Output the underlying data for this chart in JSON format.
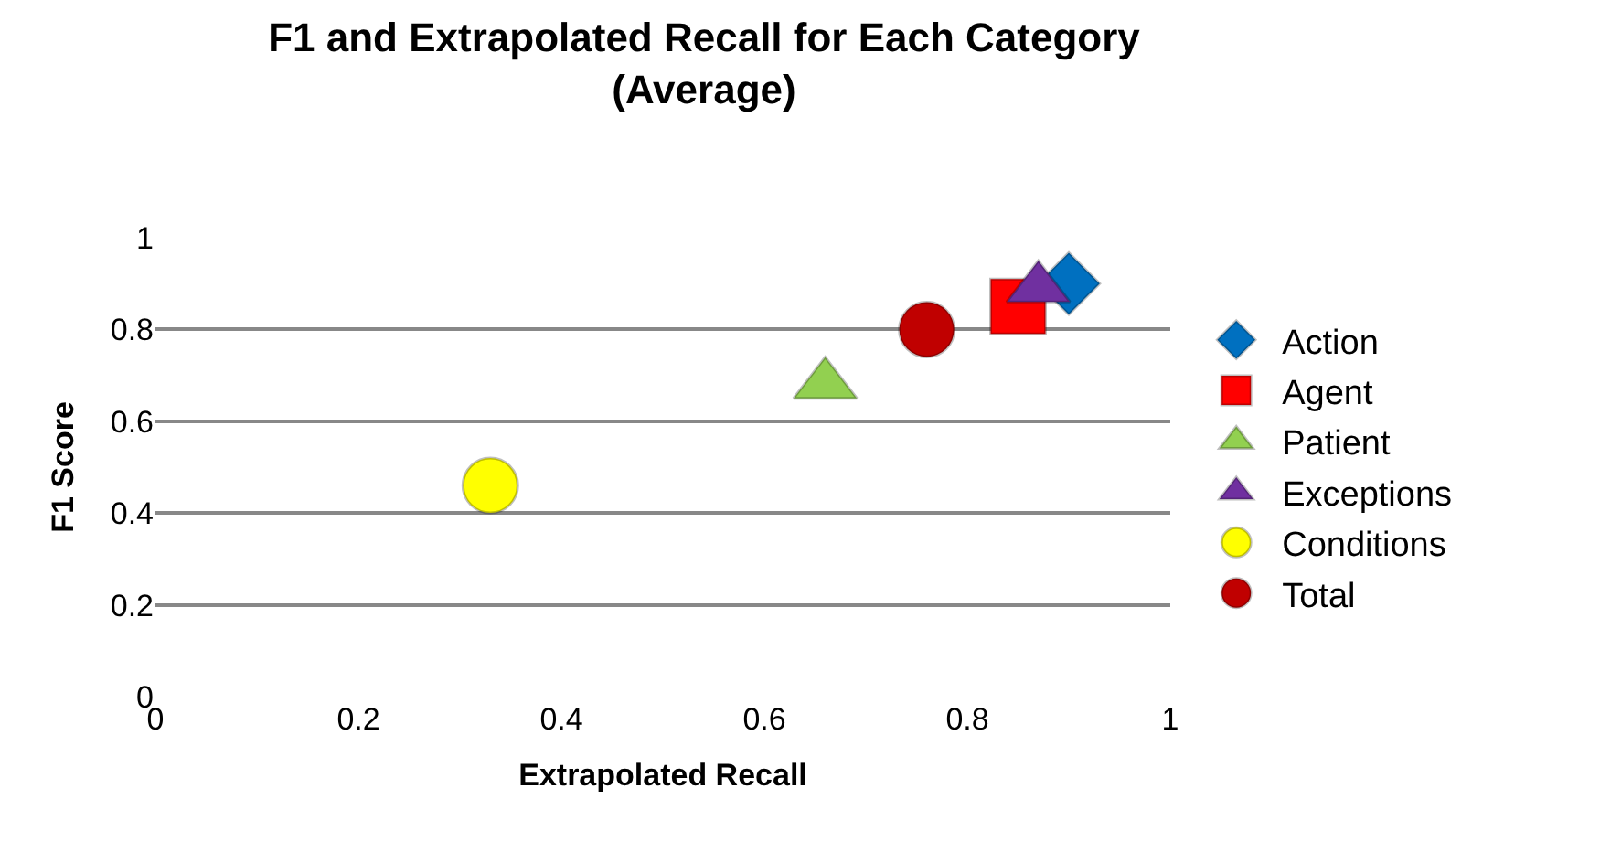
{
  "chart_data": {
    "type": "scatter",
    "title": "F1 and Extrapolated Recall for Each Category\n(Average)",
    "xlabel": "Extrapolated Recall",
    "ylabel": "F1 Score",
    "xlim": [
      0,
      1
    ],
    "xticks": [
      0,
      0.2,
      0.4,
      0.6,
      0.8,
      1
    ],
    "ylim": [
      0,
      1
    ],
    "yticks": [
      0,
      0.2,
      0.4,
      0.6,
      0.8,
      1
    ],
    "grid": "y",
    "legend": "right",
    "series": [
      {
        "name": "Action",
        "color": "#0070c0",
        "marker": "diamond",
        "x": [
          0.9
        ],
        "values": [
          0.9
        ]
      },
      {
        "name": "Agent",
        "color": "#ff0000",
        "marker": "square",
        "x": [
          0.85
        ],
        "values": [
          0.85
        ]
      },
      {
        "name": "Patient",
        "color": "#92d050",
        "marker": "triangle",
        "x": [
          0.66
        ],
        "values": [
          0.68
        ]
      },
      {
        "name": "Exceptions",
        "color": "#7030a0",
        "marker": "triangle",
        "x": [
          0.87
        ],
        "values": [
          0.89
        ]
      },
      {
        "name": "Conditions",
        "color": "#ffff00",
        "marker": "circle",
        "x": [
          0.33
        ],
        "values": [
          0.46
        ]
      },
      {
        "name": "Total",
        "color": "#c00000",
        "marker": "circle",
        "x": [
          0.76
        ],
        "values": [
          0.8
        ]
      }
    ]
  }
}
